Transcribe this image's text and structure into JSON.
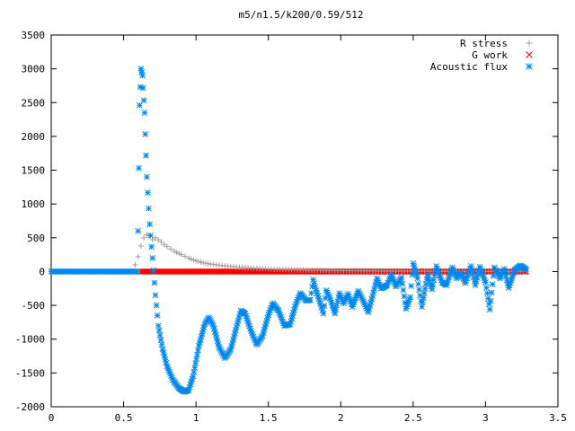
{
  "chart_data": {
    "type": "scatter",
    "title": "m5/n1.5/k200/0.59/512",
    "xlabel": "",
    "ylabel": "",
    "xlim": [
      0,
      3.5
    ],
    "ylim": [
      -2000,
      3500
    ],
    "x_ticks": [
      "0",
      "0.5",
      "1",
      "1.5",
      "2",
      "2.5",
      "3",
      "3.5"
    ],
    "y_ticks": [
      "3500",
      "3000",
      "2500",
      "2000",
      "1500",
      "1000",
      "500",
      "0",
      "-500",
      "-1000",
      "-1500",
      "-2000"
    ],
    "grid": false,
    "legend_position": "top-right",
    "series": [
      {
        "name": "R stress",
        "marker": "plus",
        "color": "#a0a0a0",
        "points": [
          [
            0.58,
            100
          ],
          [
            0.6,
            220
          ],
          [
            0.62,
            380
          ],
          [
            0.64,
            500
          ],
          [
            0.66,
            545
          ],
          [
            0.68,
            530
          ],
          [
            0.7,
            470
          ],
          [
            0.72,
            500
          ],
          [
            0.74,
            470
          ],
          [
            0.76,
            440
          ],
          [
            0.78,
            400
          ],
          [
            0.8,
            370
          ],
          [
            0.85,
            300
          ],
          [
            0.9,
            250
          ],
          [
            0.95,
            200
          ],
          [
            1.0,
            160
          ],
          [
            1.05,
            130
          ],
          [
            1.1,
            110
          ],
          [
            1.2,
            85
          ],
          [
            1.3,
            65
          ],
          [
            1.4,
            50
          ],
          [
            1.5,
            40
          ],
          [
            1.6,
            32
          ],
          [
            1.7,
            25
          ],
          [
            1.8,
            20
          ],
          [
            2.0,
            14
          ],
          [
            2.2,
            10
          ],
          [
            2.5,
            6
          ],
          [
            2.8,
            4
          ],
          [
            3.0,
            3
          ],
          [
            3.28,
            2
          ]
        ]
      },
      {
        "name": "G work",
        "marker": "cross",
        "color": "#ff0000",
        "points": [
          [
            0.62,
            0
          ],
          [
            3.28,
            0
          ]
        ]
      },
      {
        "name": "Acoustic flux",
        "marker": "star",
        "color": "#0088ee",
        "points": [
          [
            0.0,
            0
          ],
          [
            0.595,
            0
          ],
          [
            0.6,
            600
          ],
          [
            0.61,
            2460
          ],
          [
            0.62,
            3000
          ],
          [
            0.63,
            2900
          ],
          [
            0.645,
            2350
          ],
          [
            0.66,
            1400
          ],
          [
            0.68,
            700
          ],
          [
            0.7,
            200
          ],
          [
            0.72,
            -350
          ],
          [
            0.74,
            -800
          ],
          [
            0.77,
            -1150
          ],
          [
            0.8,
            -1400
          ],
          [
            0.84,
            -1600
          ],
          [
            0.88,
            -1720
          ],
          [
            0.92,
            -1780
          ],
          [
            0.95,
            -1750
          ],
          [
            0.98,
            -1550
          ],
          [
            1.02,
            -1100
          ],
          [
            1.06,
            -780
          ],
          [
            1.09,
            -680
          ],
          [
            1.12,
            -800
          ],
          [
            1.16,
            -1120
          ],
          [
            1.2,
            -1280
          ],
          [
            1.24,
            -1150
          ],
          [
            1.28,
            -820
          ],
          [
            1.31,
            -580
          ],
          [
            1.34,
            -620
          ],
          [
            1.38,
            -880
          ],
          [
            1.42,
            -1080
          ],
          [
            1.46,
            -950
          ],
          [
            1.5,
            -640
          ],
          [
            1.53,
            -470
          ],
          [
            1.57,
            -580
          ],
          [
            1.61,
            -800
          ],
          [
            1.65,
            -780
          ],
          [
            1.69,
            -480
          ],
          [
            1.72,
            -320
          ],
          [
            1.76,
            -430
          ],
          [
            1.79,
            -420
          ],
          [
            1.81,
            -120
          ],
          [
            1.83,
            -280
          ],
          [
            1.86,
            -480
          ],
          [
            1.88,
            -620
          ],
          [
            1.9,
            -280
          ],
          [
            1.93,
            -420
          ],
          [
            1.96,
            -620
          ],
          [
            1.99,
            -320
          ],
          [
            2.02,
            -470
          ],
          [
            2.05,
            -330
          ],
          [
            2.08,
            -520
          ],
          [
            2.12,
            -290
          ],
          [
            2.15,
            -410
          ],
          [
            2.19,
            -600
          ],
          [
            2.22,
            -360
          ],
          [
            2.25,
            -100
          ],
          [
            2.28,
            -250
          ],
          [
            2.32,
            -200
          ],
          [
            2.35,
            -40
          ],
          [
            2.38,
            -220
          ],
          [
            2.42,
            -90
          ],
          [
            2.45,
            -550
          ],
          [
            2.48,
            -380
          ],
          [
            2.5,
            120
          ],
          [
            2.53,
            -100
          ],
          [
            2.56,
            -520
          ],
          [
            2.6,
            -50
          ],
          [
            2.63,
            -260
          ],
          [
            2.66,
            80
          ],
          [
            2.7,
            -160
          ],
          [
            2.73,
            -200
          ],
          [
            2.77,
            60
          ],
          [
            2.8,
            -100
          ],
          [
            2.83,
            -20
          ],
          [
            2.86,
            -170
          ],
          [
            2.9,
            80
          ],
          [
            2.93,
            -200
          ],
          [
            2.96,
            70
          ],
          [
            3.0,
            -160
          ],
          [
            3.03,
            -560
          ],
          [
            3.06,
            60
          ],
          [
            3.1,
            -100
          ],
          [
            3.13,
            40
          ],
          [
            3.16,
            -240
          ],
          [
            3.2,
            20
          ],
          [
            3.24,
            90
          ],
          [
            3.28,
            30
          ]
        ]
      }
    ]
  }
}
